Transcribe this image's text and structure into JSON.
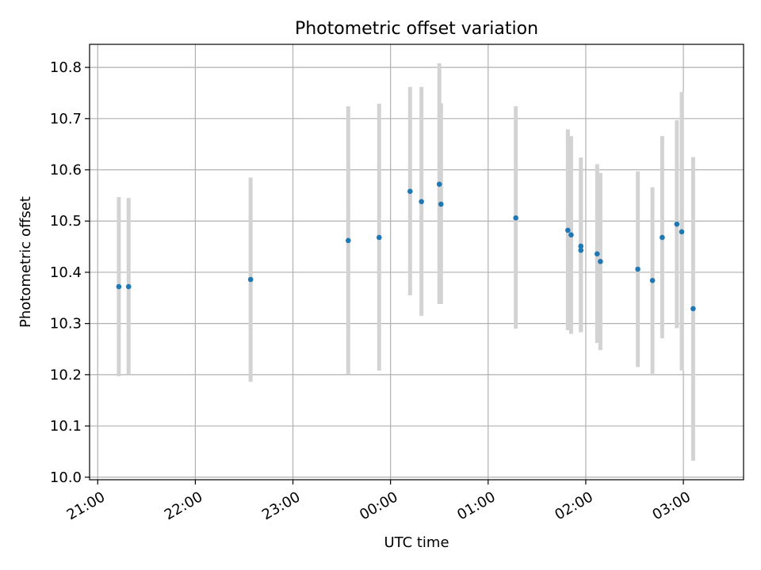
{
  "chart_data": {
    "type": "scatter",
    "title": "Photometric offset variation",
    "xlabel": "UTC time",
    "ylabel": "Photometric offset",
    "x_ticks": [
      "21:00",
      "22:00",
      "23:00",
      "00:00",
      "01:00",
      "02:00",
      "03:00"
    ],
    "y_ticks": [
      "10.0",
      "10.1",
      "10.2",
      "10.3",
      "10.4",
      "10.5",
      "10.6",
      "10.7",
      "10.8"
    ],
    "xlim": [
      "20:55",
      "03:37"
    ],
    "ylim": [
      9.995,
      10.845
    ],
    "grid": true,
    "marker_color": "#1f77b4",
    "errorbar_color": "#d3d3d3",
    "points": [
      {
        "x": "21:13",
        "y": 10.372,
        "ylow": 10.197,
        "yhigh": 10.547
      },
      {
        "x": "21:19",
        "y": 10.372,
        "ylow": 10.2,
        "yhigh": 10.545
      },
      {
        "x": "22:34",
        "y": 10.386,
        "ylow": 10.186,
        "yhigh": 10.585
      },
      {
        "x": "23:34",
        "y": 10.462,
        "ylow": 10.2,
        "yhigh": 10.724
      },
      {
        "x": "23:53",
        "y": 10.468,
        "ylow": 10.208,
        "yhigh": 10.729
      },
      {
        "x": "00:12",
        "y": 10.558,
        "ylow": 10.355,
        "yhigh": 10.762
      },
      {
        "x": "00:19",
        "y": 10.538,
        "ylow": 10.315,
        "yhigh": 10.762
      },
      {
        "x": "00:30",
        "y": 10.572,
        "ylow": 10.338,
        "yhigh": 10.808
      },
      {
        "x": "00:31",
        "y": 10.533,
        "ylow": 10.338,
        "yhigh": 10.73
      },
      {
        "x": "01:17",
        "y": 10.506,
        "ylow": 10.29,
        "yhigh": 10.724
      },
      {
        "x": "01:49",
        "y": 10.482,
        "ylow": 10.287,
        "yhigh": 10.679
      },
      {
        "x": "01:51",
        "y": 10.473,
        "ylow": 10.28,
        "yhigh": 10.666
      },
      {
        "x": "01:57",
        "y": 10.451,
        "ylow": 10.283,
        "yhigh": 10.624
      },
      {
        "x": "01:57",
        "y": 10.443,
        "ylow": 10.283,
        "yhigh": 10.604
      },
      {
        "x": "02:07",
        "y": 10.436,
        "ylow": 10.262,
        "yhigh": 10.611
      },
      {
        "x": "02:09",
        "y": 10.421,
        "ylow": 10.248,
        "yhigh": 10.594
      },
      {
        "x": "02:32",
        "y": 10.406,
        "ylow": 10.215,
        "yhigh": 10.597
      },
      {
        "x": "02:41",
        "y": 10.384,
        "ylow": 10.202,
        "yhigh": 10.566
      },
      {
        "x": "02:47",
        "y": 10.468,
        "ylow": 10.271,
        "yhigh": 10.666
      },
      {
        "x": "02:56",
        "y": 10.494,
        "ylow": 10.291,
        "yhigh": 10.697
      },
      {
        "x": "02:59",
        "y": 10.479,
        "ylow": 10.208,
        "yhigh": 10.752
      },
      {
        "x": "03:06",
        "y": 10.329,
        "ylow": 10.032,
        "yhigh": 10.625
      }
    ]
  }
}
